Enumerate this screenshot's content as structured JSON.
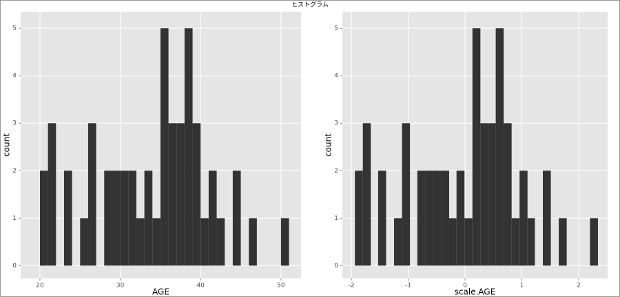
{
  "title": "ヒストグラム",
  "chart_data": [
    {
      "type": "histogram",
      "x_label": "AGE",
      "y_label": "count",
      "color": "#333333",
      "bins": [
        20,
        21,
        22,
        23,
        24,
        25,
        26,
        27,
        28,
        29,
        30,
        31,
        32,
        33,
        34,
        35,
        36,
        37,
        38,
        39,
        40,
        41,
        42,
        43,
        44,
        45,
        46,
        47,
        48,
        49,
        50,
        51
      ],
      "values": [
        2,
        3,
        0,
        2,
        0,
        1,
        3,
        0,
        2,
        2,
        2,
        2,
        1,
        2,
        1,
        5,
        3,
        3,
        5,
        3,
        1,
        2,
        1,
        0,
        2,
        0,
        1,
        0,
        0,
        0,
        1
      ],
      "xlim": [
        17.6,
        52.5
      ],
      "xticks": [
        20,
        30,
        40,
        50
      ],
      "ylim": [
        -0.27,
        5.35
      ],
      "yticks": [
        0,
        1,
        2,
        3,
        4,
        5
      ],
      "grid": true
    },
    {
      "type": "histogram",
      "x_label": "scale.AGE",
      "y_label": "count",
      "color": "#333333",
      "bins": [
        -1.94,
        -1.8,
        -1.66,
        -1.53,
        -1.39,
        -1.25,
        -1.11,
        -0.97,
        -0.84,
        -0.7,
        -0.56,
        -0.42,
        -0.28,
        -0.15,
        -0.01,
        0.13,
        0.27,
        0.41,
        0.54,
        0.68,
        0.82,
        0.96,
        1.1,
        1.23,
        1.37,
        1.51,
        1.65,
        1.79,
        1.92,
        2.06,
        2.2,
        2.34
      ],
      "values": [
        2,
        3,
        0,
        2,
        0,
        1,
        3,
        0,
        2,
        2,
        2,
        2,
        1,
        2,
        1,
        5,
        3,
        3,
        5,
        3,
        1,
        2,
        1,
        0,
        2,
        0,
        1,
        0,
        0,
        0,
        1
      ],
      "xlim": [
        -2.16,
        2.51
      ],
      "xticks": [
        -2,
        -1,
        0,
        1,
        2
      ],
      "ylim": [
        -0.27,
        5.35
      ],
      "yticks": [
        0,
        1,
        2,
        3,
        4,
        5
      ],
      "grid": true
    }
  ]
}
